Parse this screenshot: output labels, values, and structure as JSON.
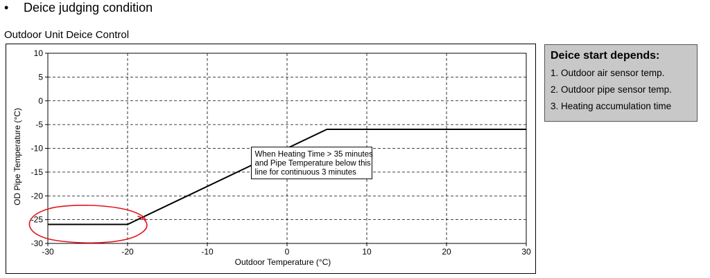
{
  "header": {
    "bullet": "•",
    "text": "Deice judging condition"
  },
  "chart_title": "Outdoor Unit Deice Control",
  "side_panel": {
    "title": "Deice start depends:",
    "items": [
      "1. Outdoor air sensor temp.",
      "2. Outdoor pipe sensor temp.",
      "3. Heating accumulation time"
    ]
  },
  "chart_data": {
    "type": "line",
    "xlabel": "Outdoor Temperature (°C)",
    "ylabel": "OD Pipe Temperature (°C)",
    "xlim": [
      -30,
      30
    ],
    "ylim": [
      -30,
      10
    ],
    "xticks": [
      -30,
      -20,
      -10,
      0,
      10,
      20,
      30
    ],
    "yticks": [
      10,
      5,
      0,
      -5,
      -10,
      -15,
      -20,
      -25,
      -30
    ],
    "grid": true,
    "series": [
      {
        "x": [
          -30,
          -20,
          5,
          30
        ],
        "y": [
          -26,
          -26,
          -6,
          -6
        ]
      }
    ],
    "annotation": {
      "lines": [
        "When Heating Time > 35 minutes",
        "and Pipe Temperature below this",
        "line for continuous 3 minutes"
      ],
      "anchor_x": 3,
      "anchor_y": -12.5
    },
    "highlight": {
      "shape": "hand-drawn ellipse",
      "color": "#e0141e",
      "center_x": -25,
      "center_y": -26
    }
  }
}
